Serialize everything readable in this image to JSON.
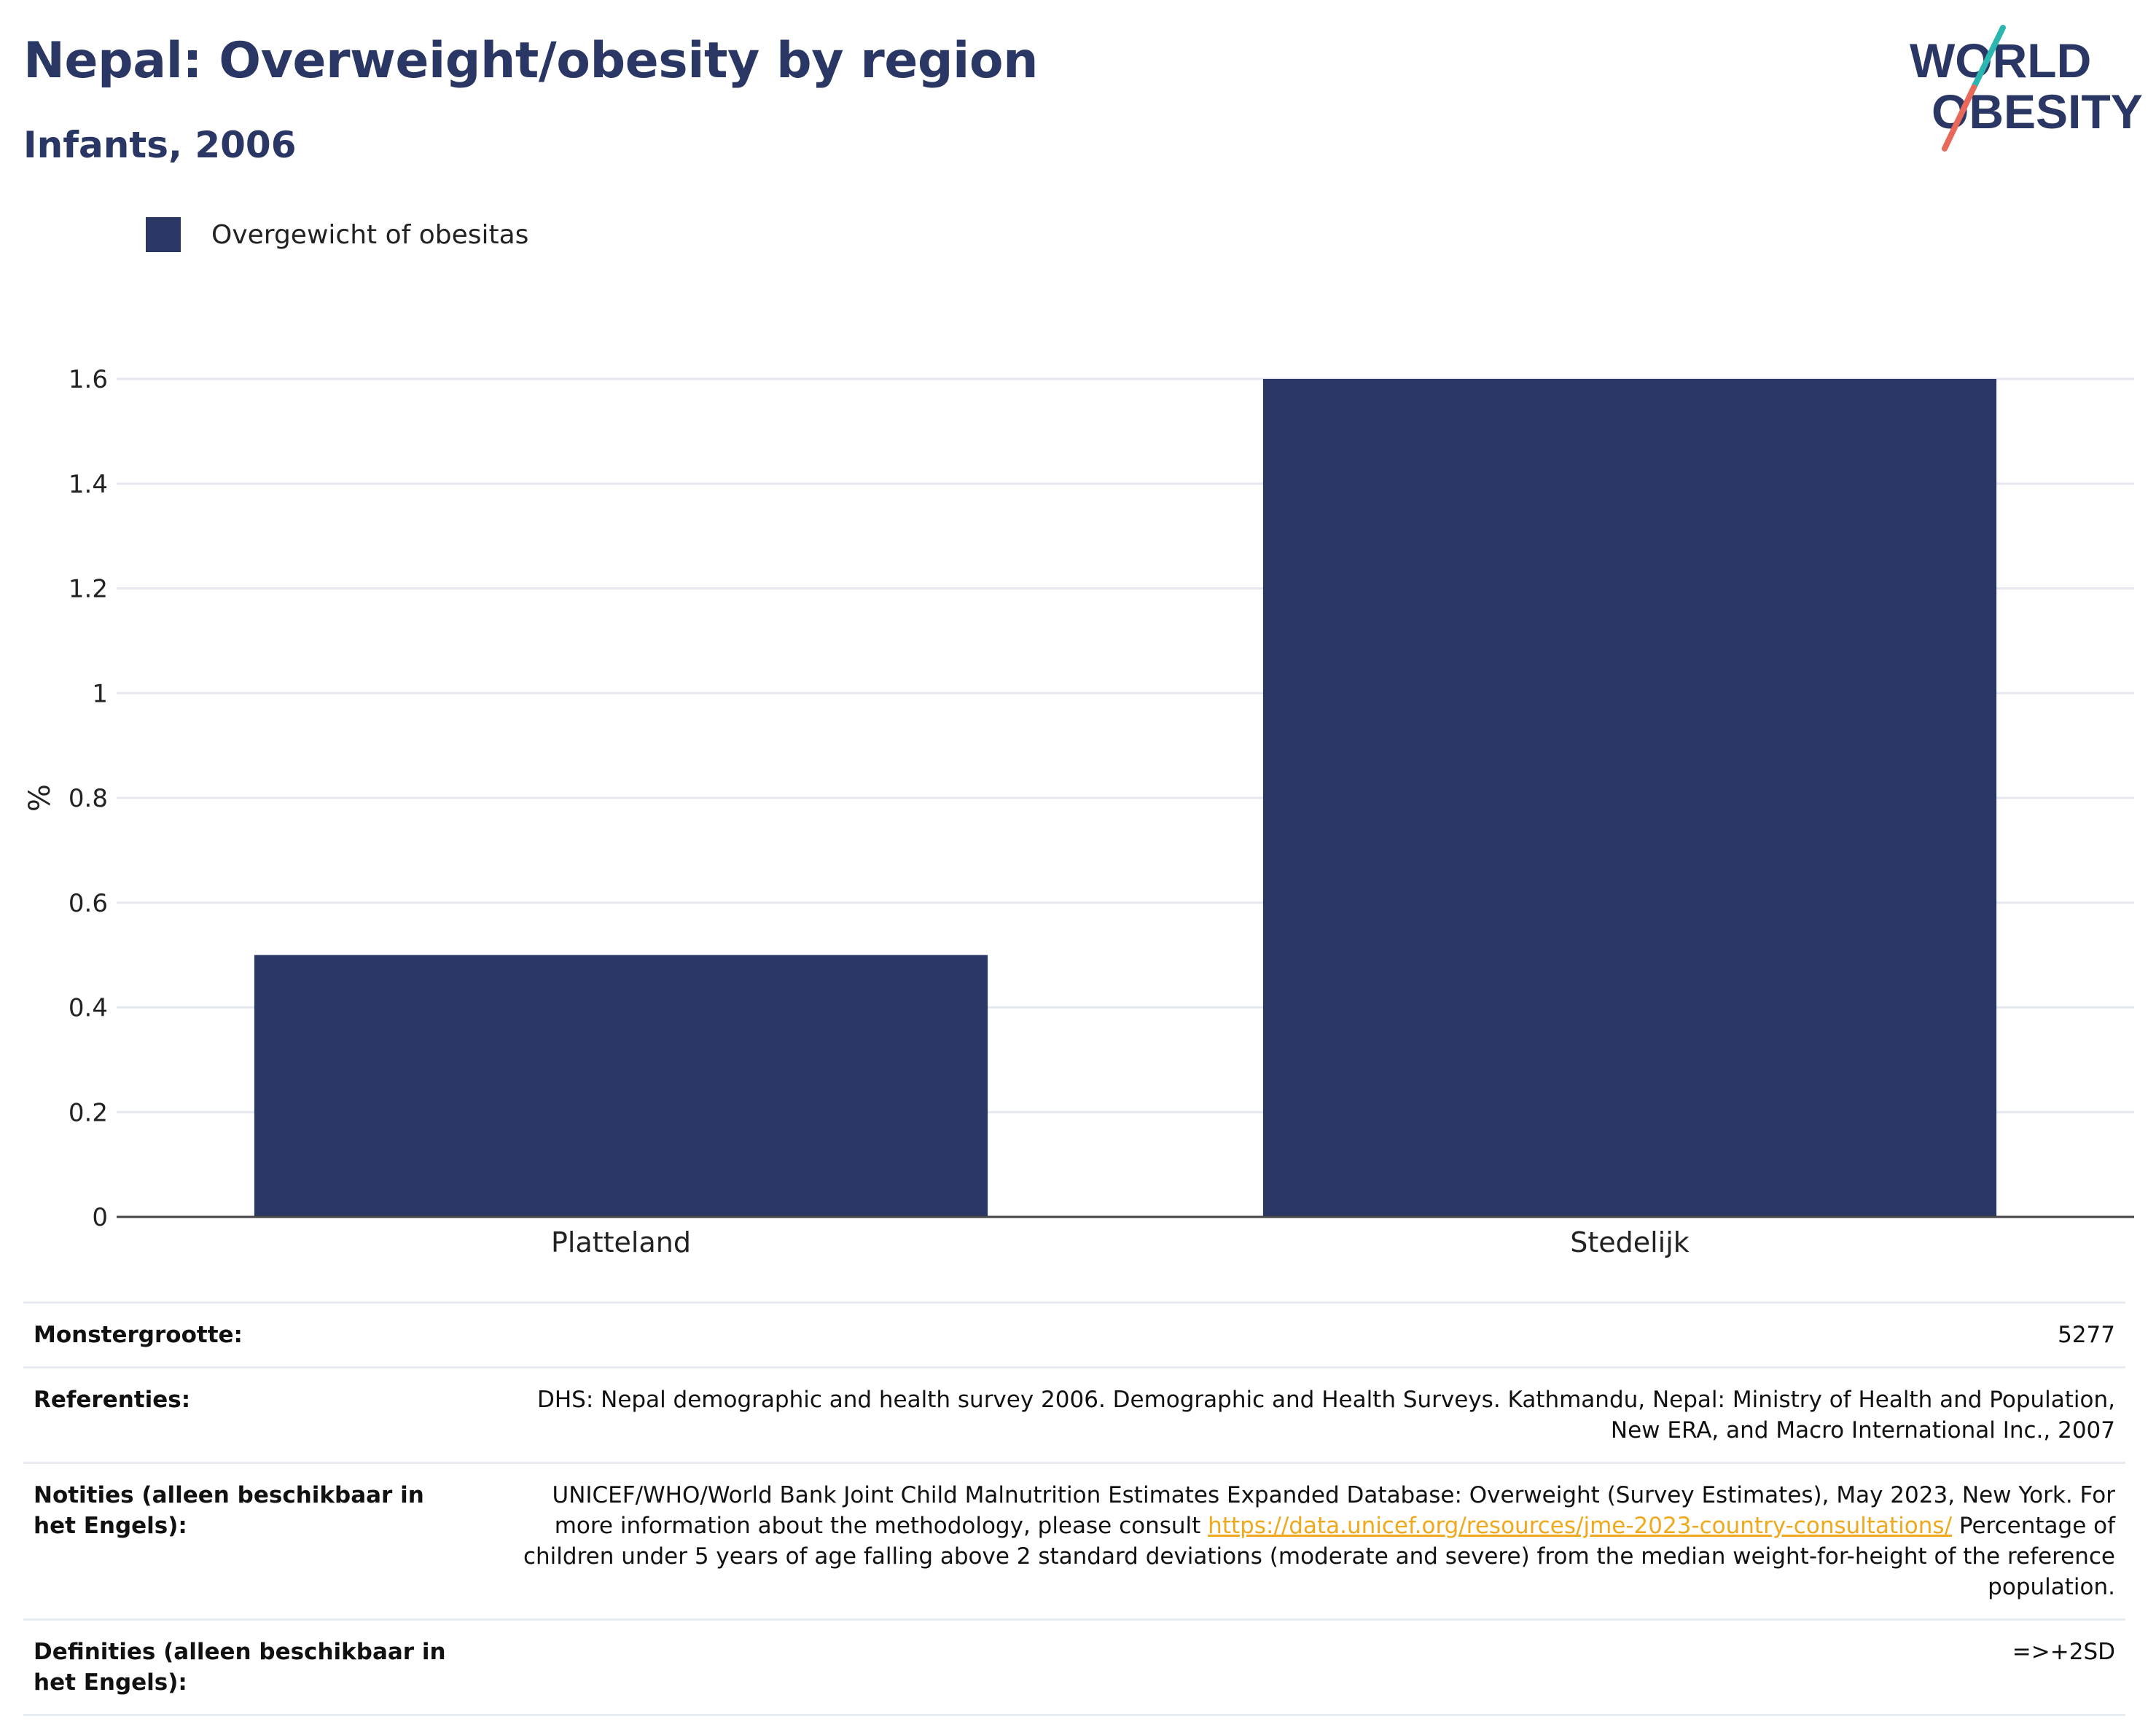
{
  "header": {
    "title": "Nepal: Overweight/obesity by region",
    "subtitle": "Infants, 2006"
  },
  "logo": {
    "line1": "WORLD",
    "line2": "OBESITY",
    "colors": {
      "text": "#2a3664",
      "slash_teal": "#2bb6b0",
      "slash_red": "#e8685a"
    }
  },
  "colors": {
    "bar": "#2a3664",
    "axis": "#444444",
    "grid": "#e5e8ef"
  },
  "chart_data": {
    "type": "bar",
    "categories": [
      "Platteland",
      "Stedelijk"
    ],
    "series": [
      {
        "name": "Overgewicht of obesitas",
        "values": [
          0.5,
          1.6
        ]
      }
    ],
    "ylabel": "%",
    "xlabel": "",
    "ylim": [
      0,
      1.6
    ],
    "yticks": [
      "0",
      "0.2",
      "0.4",
      "0.6",
      "0.8",
      "1",
      "1.2",
      "1.4",
      "1.6"
    ],
    "grid": true,
    "legend": "top-left"
  },
  "info": {
    "sample_label": "Monstergrootte:",
    "sample_value": "5277",
    "references_label": "Referenties:",
    "references_value": "DHS: Nepal demographic and health survey 2006. Demographic and Health Surveys. Kathmandu, Nepal: Ministry of Health and Population, New ERA, and Macro International Inc., 2007",
    "notes_label": "Notities (alleen beschikbaar in het Engels):",
    "notes_text_1": "UNICEF/WHO/World Bank Joint Child Malnutrition Estimates Expanded Database: Overweight (Survey Estimates), May 2023, New York. For more information about the methodology, please consult",
    "notes_link": "https://data.unicef.org/resources/jme-2023-country-consultations/",
    "notes_text_2": "Percentage of children under 5 years of age falling above 2 standard deviations (moderate and severe) from the median weight-for-height of the reference population.",
    "definitions_label": "Definities (alleen beschikbaar in het Engels):",
    "definitions_value": "=>+2SD"
  }
}
